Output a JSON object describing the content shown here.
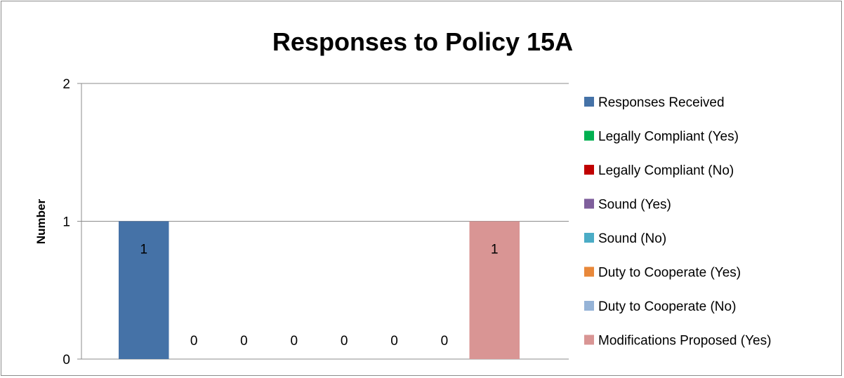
{
  "chart_data": {
    "type": "bar",
    "title": "Responses to Policy 15A",
    "ylabel": "Number",
    "xlabel": "",
    "ylim": [
      0,
      2
    ],
    "yticks": [
      0,
      1,
      2
    ],
    "grid": true,
    "legend_position": "right",
    "series": [
      {
        "name": "Responses Received",
        "value": 1,
        "color": "#4572A7"
      },
      {
        "name": "Legally Compliant (Yes)",
        "value": 0,
        "color": "#00B050"
      },
      {
        "name": "Legally Compliant (No)",
        "value": 0,
        "color": "#C00000"
      },
      {
        "name": "Sound (Yes)",
        "value": 0,
        "color": "#7F5F9C"
      },
      {
        "name": "Sound (No)",
        "value": 0,
        "color": "#4BACC6"
      },
      {
        "name": "Duty to Cooperate (Yes)",
        "value": 0,
        "color": "#E8883A"
      },
      {
        "name": "Duty to Cooperate (No)",
        "value": 0,
        "color": "#95B3D7"
      },
      {
        "name": "Modifications Proposed (Yes)",
        "value": 1,
        "color": "#D99594"
      }
    ]
  }
}
